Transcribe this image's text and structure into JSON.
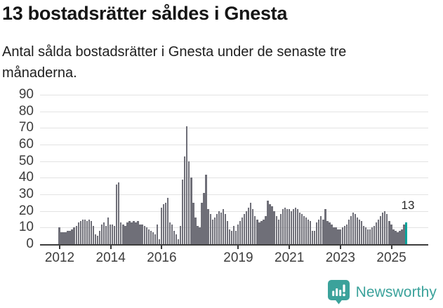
{
  "header": {
    "title": "13 bostadsrätter såldes i Gnesta",
    "subtitle": "Antal sålda bostadsrätter i Gnesta under de senaste tre månaderna."
  },
  "chart_data": {
    "type": "bar",
    "title": "13 bostadsrätter såldes i Gnesta",
    "xlabel": "",
    "ylabel": "",
    "ylim": [
      0,
      90
    ],
    "yticks": [
      0,
      10,
      20,
      30,
      40,
      50,
      60,
      70,
      80,
      90
    ],
    "xticks": [
      2012,
      2014,
      2016,
      2019,
      2021,
      2023,
      2025
    ],
    "grid": "horizontal",
    "legend": "none",
    "frequency": "monthly",
    "start_year": 2012,
    "start_month": 1,
    "values": [
      10,
      7,
      7,
      7,
      8,
      8,
      9,
      10,
      11,
      13,
      14,
      15,
      15,
      14,
      15,
      14,
      11,
      6,
      5,
      8,
      12,
      13,
      11,
      16,
      12,
      12,
      11,
      36,
      37,
      13,
      12,
      11,
      13,
      14,
      13,
      14,
      13,
      14,
      12,
      12,
      11,
      10,
      9,
      8,
      7,
      6,
      12,
      3,
      22,
      24,
      25,
      28,
      13,
      12,
      8,
      6,
      3,
      11,
      39,
      53,
      71,
      50,
      40,
      25,
      16,
      11,
      10,
      25,
      31,
      42,
      21,
      18,
      15,
      16,
      18,
      20,
      19,
      21,
      18,
      14,
      9,
      8,
      11,
      8,
      12,
      14,
      16,
      18,
      20,
      22,
      25,
      21,
      17,
      15,
      13,
      14,
      15,
      17,
      26,
      24,
      23,
      20,
      17,
      15,
      18,
      21,
      22,
      21,
      21,
      20,
      21,
      22,
      21,
      19,
      18,
      17,
      16,
      15,
      14,
      8,
      8,
      13,
      15,
      17,
      15,
      21,
      14,
      13,
      12,
      10,
      10,
      9,
      9,
      10,
      11,
      12,
      15,
      17,
      19,
      18,
      16,
      15,
      14,
      11,
      10,
      9,
      9,
      10,
      11,
      13,
      15,
      17,
      19,
      20,
      18,
      14,
      12,
      9,
      8,
      7,
      8,
      9,
      12,
      13
    ],
    "highlight_last": true,
    "annotation": {
      "text": "13"
    },
    "colors": {
      "bar": "#6F6F78",
      "highlight": "#00A49B",
      "grid": "#E3E3E3",
      "axis": "#3D3D3D"
    }
  },
  "footer": {
    "brand": "Newsworthy",
    "logo_icon": "bar-chart-speech-bubble-icon",
    "brand_color": "#3BA29B"
  }
}
